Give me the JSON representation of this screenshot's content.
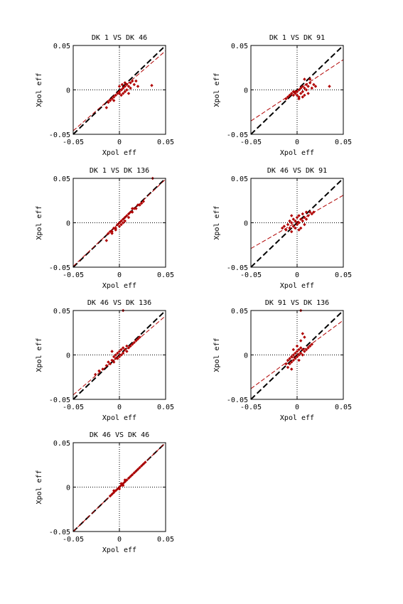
{
  "colors": {
    "points": "#b00000",
    "fit_line": "#b00000",
    "unity_line": "#000000",
    "axes": "#000000",
    "zero_lines": "#000000"
  },
  "chart_data": [
    {
      "type": "scatter",
      "title": "DK  1 VS DK 46",
      "xlabel": "Xpol eff",
      "ylabel": "Xpol eff",
      "xlim": [
        -0.05,
        0.05
      ],
      "ylim": [
        -0.05,
        0.05
      ],
      "xticks": [
        "-0.05",
        "0",
        "0.05"
      ],
      "yticks": [
        "-0.05",
        "0",
        "0.05"
      ],
      "zero_lines": true,
      "unity_line": {
        "x": [
          -0.05,
          0.05
        ],
        "y": [
          -0.05,
          0.05
        ]
      },
      "fit_line": {
        "x": [
          -0.05,
          0.05
        ],
        "y": [
          -0.046,
          0.044
        ]
      },
      "points": [
        [
          -0.014,
          -0.02
        ],
        [
          -0.01,
          -0.012
        ],
        [
          -0.008,
          -0.01
        ],
        [
          -0.006,
          -0.008
        ],
        [
          -0.004,
          -0.006
        ],
        [
          -0.002,
          -0.004
        ],
        [
          0.0,
          -0.004
        ],
        [
          0.0,
          -0.002
        ],
        [
          0.002,
          0.0
        ],
        [
          0.002,
          -0.006
        ],
        [
          0.004,
          0.002
        ],
        [
          0.004,
          -0.004
        ],
        [
          0.006,
          0.004
        ],
        [
          0.006,
          -0.002
        ],
        [
          0.008,
          0.006
        ],
        [
          0.008,
          0.0
        ],
        [
          0.01,
          0.004
        ],
        [
          0.012,
          0.008
        ],
        [
          0.012,
          0.002
        ],
        [
          0.014,
          0.01
        ],
        [
          0.016,
          0.006
        ],
        [
          0.018,
          0.01
        ],
        [
          -0.006,
          -0.012
        ],
        [
          0.0,
          0.004
        ],
        [
          0.01,
          -0.004
        ],
        [
          0.035,
          0.005
        ],
        [
          0.02,
          0.004
        ],
        [
          0.006,
          0.008
        ],
        [
          -0.012,
          -0.014
        ],
        [
          0.003,
          0.006
        ]
      ]
    },
    {
      "type": "scatter",
      "title": "DK  1 VS DK 91",
      "xlabel": "Xpol eff",
      "ylabel": "Xpol eff",
      "xlim": [
        -0.05,
        0.05
      ],
      "ylim": [
        -0.05,
        0.05
      ],
      "xticks": [
        "-0.05",
        "0",
        "0.05"
      ],
      "yticks": [
        "-0.05",
        "0",
        "0.05"
      ],
      "zero_lines": true,
      "unity_line": {
        "x": [
          -0.05,
          0.05
        ],
        "y": [
          -0.05,
          0.05
        ]
      },
      "fit_line": {
        "x": [
          -0.05,
          0.05
        ],
        "y": [
          -0.035,
          0.034
        ]
      },
      "points": [
        [
          -0.012,
          -0.01
        ],
        [
          -0.01,
          -0.008
        ],
        [
          -0.008,
          -0.006
        ],
        [
          -0.006,
          -0.004
        ],
        [
          -0.004,
          -0.006
        ],
        [
          -0.002,
          -0.004
        ],
        [
          -0.002,
          -0.002
        ],
        [
          0.0,
          -0.006
        ],
        [
          0.0,
          -0.002
        ],
        [
          0.002,
          0.0
        ],
        [
          0.002,
          -0.008
        ],
        [
          0.004,
          -0.004
        ],
        [
          0.004,
          0.002
        ],
        [
          0.006,
          -0.002
        ],
        [
          0.006,
          0.004
        ],
        [
          0.008,
          0.002
        ],
        [
          0.008,
          -0.006
        ],
        [
          0.01,
          0.006
        ],
        [
          0.01,
          0.0
        ],
        [
          0.012,
          0.004
        ],
        [
          0.014,
          0.008
        ],
        [
          0.016,
          0.002
        ],
        [
          0.018,
          0.006
        ],
        [
          0.02,
          0.004
        ],
        [
          0.035,
          0.004
        ],
        [
          0.008,
          0.012
        ],
        [
          -0.004,
          -0.002
        ],
        [
          0.012,
          -0.004
        ],
        [
          0.002,
          -0.01
        ],
        [
          0.006,
          -0.008
        ],
        [
          0.014,
          0.012
        ]
      ]
    },
    {
      "type": "scatter",
      "title": "DK  1 VS DK 136",
      "xlabel": "Xpol eff",
      "ylabel": "Xpol eff",
      "xlim": [
        -0.05,
        0.05
      ],
      "ylim": [
        -0.05,
        0.05
      ],
      "xticks": [
        "-0.05",
        "0",
        "0.05"
      ],
      "yticks": [
        "-0.05",
        "0",
        "0.05"
      ],
      "zero_lines": true,
      "unity_line": {
        "x": [
          -0.05,
          0.05
        ],
        "y": [
          -0.05,
          0.05
        ]
      },
      "fit_line": {
        "x": [
          -0.05,
          0.05
        ],
        "y": [
          -0.049,
          0.049
        ]
      },
      "points": [
        [
          -0.014,
          -0.02
        ],
        [
          -0.012,
          -0.012
        ],
        [
          -0.01,
          -0.01
        ],
        [
          -0.008,
          -0.01
        ],
        [
          -0.006,
          -0.006
        ],
        [
          -0.004,
          -0.006
        ],
        [
          -0.002,
          -0.002
        ],
        [
          0.0,
          0.0
        ],
        [
          0.0,
          -0.004
        ],
        [
          0.002,
          0.002
        ],
        [
          0.002,
          -0.002
        ],
        [
          0.004,
          0.004
        ],
        [
          0.004,
          0.0
        ],
        [
          0.006,
          0.006
        ],
        [
          0.008,
          0.008
        ],
        [
          0.01,
          0.01
        ],
        [
          0.012,
          0.012
        ],
        [
          0.014,
          0.012
        ],
        [
          0.016,
          0.016
        ],
        [
          0.018,
          0.016
        ],
        [
          0.02,
          0.02
        ],
        [
          0.022,
          0.02
        ],
        [
          0.024,
          0.022
        ],
        [
          0.026,
          0.024
        ],
        [
          0.036,
          0.05
        ],
        [
          -0.008,
          -0.012
        ],
        [
          0.006,
          0.002
        ],
        [
          0.01,
          0.006
        ],
        [
          -0.004,
          -0.008
        ],
        [
          0.014,
          0.016
        ]
      ]
    },
    {
      "type": "scatter",
      "title": "DK 46 VS DK 91",
      "xlabel": "Xpol eff",
      "ylabel": "Xpol eff",
      "xlim": [
        -0.05,
        0.05
      ],
      "ylim": [
        -0.05,
        0.05
      ],
      "xticks": [
        "-0.05",
        "0",
        "0.05"
      ],
      "yticks": [
        "-0.05",
        "0",
        "0.05"
      ],
      "zero_lines": true,
      "unity_line": {
        "x": [
          -0.05,
          0.05
        ],
        "y": [
          -0.05,
          0.05
        ]
      },
      "fit_line": {
        "x": [
          -0.05,
          0.05
        ],
        "y": [
          -0.029,
          0.031
        ]
      },
      "points": [
        [
          -0.016,
          -0.006
        ],
        [
          -0.014,
          -0.004
        ],
        [
          -0.012,
          -0.008
        ],
        [
          -0.01,
          -0.002
        ],
        [
          -0.008,
          0.002
        ],
        [
          -0.008,
          -0.006
        ],
        [
          -0.006,
          0.0
        ],
        [
          -0.006,
          -0.01
        ],
        [
          -0.004,
          0.004
        ],
        [
          -0.004,
          -0.004
        ],
        [
          -0.002,
          0.002
        ],
        [
          -0.002,
          -0.006
        ],
        [
          0.0,
          0.006
        ],
        [
          0.0,
          -0.002
        ],
        [
          0.002,
          0.008
        ],
        [
          0.002,
          0.0
        ],
        [
          0.004,
          0.004
        ],
        [
          0.004,
          -0.006
        ],
        [
          0.006,
          0.01
        ],
        [
          0.006,
          0.002
        ],
        [
          0.008,
          0.006
        ],
        [
          0.008,
          -0.002
        ],
        [
          0.01,
          0.012
        ],
        [
          0.01,
          0.004
        ],
        [
          0.012,
          0.008
        ],
        [
          0.014,
          0.012
        ],
        [
          0.016,
          0.01
        ],
        [
          0.018,
          0.012
        ],
        [
          -0.006,
          0.008
        ],
        [
          0.002,
          -0.008
        ]
      ]
    },
    {
      "type": "scatter",
      "title": "DK 46 VS DK 136",
      "xlabel": "Xpol eff",
      "ylabel": "Xpol eff",
      "xlim": [
        -0.05,
        0.05
      ],
      "ylim": [
        -0.05,
        0.05
      ],
      "xticks": [
        "-0.05",
        "0",
        "0.05"
      ],
      "yticks": [
        "-0.05",
        "0",
        "0.05"
      ],
      "zero_lines": true,
      "unity_line": {
        "x": [
          -0.05,
          0.05
        ],
        "y": [
          -0.05,
          0.05
        ]
      },
      "fit_line": {
        "x": [
          -0.05,
          0.05
        ],
        "y": [
          -0.045,
          0.044
        ]
      },
      "points": [
        [
          -0.026,
          -0.022
        ],
        [
          -0.022,
          -0.018
        ],
        [
          -0.018,
          -0.016
        ],
        [
          -0.014,
          -0.012
        ],
        [
          -0.012,
          -0.008
        ],
        [
          -0.01,
          -0.01
        ],
        [
          -0.008,
          -0.006
        ],
        [
          -0.006,
          -0.002
        ],
        [
          -0.006,
          -0.008
        ],
        [
          -0.004,
          0.0
        ],
        [
          -0.004,
          -0.004
        ],
        [
          -0.002,
          0.002
        ],
        [
          -0.002,
          -0.004
        ],
        [
          0.0,
          0.004
        ],
        [
          0.0,
          -0.002
        ],
        [
          0.002,
          0.006
        ],
        [
          0.002,
          0.0
        ],
        [
          0.004,
          0.008
        ],
        [
          0.004,
          0.002
        ],
        [
          0.006,
          0.006
        ],
        [
          0.008,
          0.01
        ],
        [
          0.008,
          0.004
        ],
        [
          0.01,
          0.008
        ],
        [
          0.012,
          0.01
        ],
        [
          0.014,
          0.012
        ],
        [
          0.016,
          0.014
        ],
        [
          0.018,
          0.016
        ],
        [
          0.02,
          0.018
        ],
        [
          0.022,
          0.02
        ],
        [
          0.004,
          0.05
        ],
        [
          -0.008,
          0.004
        ]
      ]
    },
    {
      "type": "scatter",
      "title": "DK 91 VS DK 136",
      "xlabel": "Xpol eff",
      "ylabel": "Xpol eff",
      "xlim": [
        -0.05,
        0.05
      ],
      "ylim": [
        -0.05,
        0.05
      ],
      "xticks": [
        "-0.05",
        "0",
        "0.05"
      ],
      "yticks": [
        "-0.05",
        "0",
        "0.05"
      ],
      "zero_lines": true,
      "unity_line": {
        "x": [
          -0.05,
          0.05
        ],
        "y": [
          -0.05,
          0.05
        ]
      },
      "fit_line": {
        "x": [
          -0.05,
          0.05
        ],
        "y": [
          -0.038,
          0.039
        ]
      },
      "points": [
        [
          -0.012,
          -0.01
        ],
        [
          -0.01,
          -0.006
        ],
        [
          -0.01,
          -0.014
        ],
        [
          -0.008,
          -0.004
        ],
        [
          -0.008,
          -0.01
        ],
        [
          -0.006,
          -0.002
        ],
        [
          -0.006,
          -0.008
        ],
        [
          -0.004,
          0.0
        ],
        [
          -0.004,
          -0.006
        ],
        [
          -0.002,
          0.002
        ],
        [
          -0.002,
          -0.004
        ],
        [
          0.0,
          0.004
        ],
        [
          0.0,
          -0.002
        ],
        [
          0.002,
          0.006
        ],
        [
          0.002,
          0.0
        ],
        [
          0.004,
          0.008
        ],
        [
          0.004,
          0.002
        ],
        [
          0.006,
          0.006
        ],
        [
          0.006,
          0.0
        ],
        [
          0.008,
          0.004
        ],
        [
          0.01,
          0.006
        ],
        [
          0.012,
          0.008
        ],
        [
          0.014,
          0.01
        ],
        [
          0.016,
          0.012
        ],
        [
          0.006,
          0.024
        ],
        [
          0.008,
          0.02
        ],
        [
          0.004,
          0.016
        ],
        [
          0.004,
          0.05
        ],
        [
          -0.006,
          -0.016
        ],
        [
          0.002,
          -0.006
        ],
        [
          0.0,
          0.01
        ],
        [
          -0.004,
          0.006
        ]
      ]
    },
    {
      "type": "scatter",
      "title": "DK 46 VS DK 46",
      "xlabel": "Xpol eff",
      "ylabel": "Xpol eff",
      "xlim": [
        -0.05,
        0.05
      ],
      "ylim": [
        -0.05,
        0.05
      ],
      "xticks": [
        "-0.05",
        "0",
        "0.05"
      ],
      "yticks": [
        "-0.05",
        "0",
        "0.05"
      ],
      "zero_lines": true,
      "unity_line": {
        "x": [
          -0.05,
          0.05
        ],
        "y": [
          -0.05,
          0.05
        ]
      },
      "fit_line": {
        "x": [
          -0.05,
          0.05
        ],
        "y": [
          -0.05,
          0.05
        ]
      },
      "points": [
        [
          -0.01,
          -0.01
        ],
        [
          -0.008,
          -0.008
        ],
        [
          -0.006,
          -0.006
        ],
        [
          -0.004,
          -0.004
        ],
        [
          -0.002,
          -0.002
        ],
        [
          0.0,
          0.0
        ],
        [
          0.002,
          0.002
        ],
        [
          0.004,
          0.004
        ],
        [
          0.006,
          0.006
        ],
        [
          0.008,
          0.008
        ],
        [
          0.01,
          0.01
        ],
        [
          0.012,
          0.012
        ],
        [
          0.014,
          0.014
        ],
        [
          0.016,
          0.016
        ],
        [
          0.018,
          0.018
        ],
        [
          0.02,
          0.02
        ],
        [
          0.022,
          0.022
        ],
        [
          0.024,
          0.024
        ],
        [
          0.026,
          0.026
        ],
        [
          0.028,
          0.028
        ],
        [
          0.002,
          0.004
        ],
        [
          0.0,
          -0.002
        ],
        [
          0.004,
          0.002
        ],
        [
          -0.006,
          -0.004
        ],
        [
          0.006,
          0.008
        ]
      ]
    }
  ]
}
